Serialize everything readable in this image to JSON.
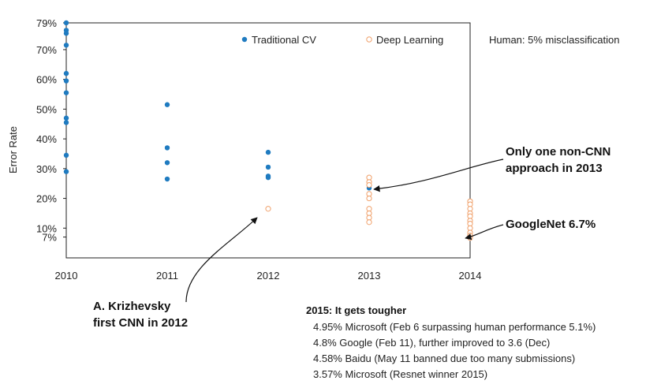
{
  "chart_data": {
    "type": "scatter",
    "title": "",
    "xlabel": "",
    "ylabel": "Error Rate",
    "x_ticks": [
      "2010",
      "2011",
      "2012",
      "2013",
      "2014"
    ],
    "y_ticks": [
      {
        "value": 7,
        "label": "7%"
      },
      {
        "value": 10,
        "label": "10%"
      },
      {
        "value": 20,
        "label": "20%"
      },
      {
        "value": 30,
        "label": "30%"
      },
      {
        "value": 40,
        "label": "40%"
      },
      {
        "value": 50,
        "label": "50%"
      },
      {
        "value": 60,
        "label": "60%"
      },
      {
        "value": 70,
        "label": "70%"
      },
      {
        "value": 79,
        "label": "79%"
      }
    ],
    "ylim": [
      0,
      79
    ],
    "grid": false,
    "legend_position": "top",
    "series": [
      {
        "name": "Traditional CV",
        "color": "#1f7bc0",
        "marker": "filled-circle",
        "points": [
          {
            "x": 2010,
            "y": 79
          },
          {
            "x": 2010,
            "y": 76.5
          },
          {
            "x": 2010,
            "y": 75.5
          },
          {
            "x": 2010,
            "y": 71.5
          },
          {
            "x": 2010,
            "y": 62
          },
          {
            "x": 2010,
            "y": 59.5
          },
          {
            "x": 2010,
            "y": 55.5
          },
          {
            "x": 2010,
            "y": 47
          },
          {
            "x": 2010,
            "y": 45.5
          },
          {
            "x": 2010,
            "y": 34.5
          },
          {
            "x": 2010,
            "y": 29
          },
          {
            "x": 2011,
            "y": 51.5
          },
          {
            "x": 2011,
            "y": 37
          },
          {
            "x": 2011,
            "y": 32
          },
          {
            "x": 2011,
            "y": 26.5
          },
          {
            "x": 2012,
            "y": 35.5
          },
          {
            "x": 2012,
            "y": 30.5
          },
          {
            "x": 2012,
            "y": 27.5
          },
          {
            "x": 2012,
            "y": 27
          },
          {
            "x": 2013,
            "y": 23.5
          }
        ]
      },
      {
        "name": "Deep Learning",
        "color": "#f0a06a",
        "marker": "open-circle",
        "points": [
          {
            "x": 2012,
            "y": 16.5
          },
          {
            "x": 2013,
            "y": 27
          },
          {
            "x": 2013,
            "y": 25.5
          },
          {
            "x": 2013,
            "y": 24.5
          },
          {
            "x": 2013,
            "y": 21.5
          },
          {
            "x": 2013,
            "y": 20
          },
          {
            "x": 2013,
            "y": 16.5
          },
          {
            "x": 2013,
            "y": 15
          },
          {
            "x": 2013,
            "y": 13.5
          },
          {
            "x": 2013,
            "y": 12
          },
          {
            "x": 2014,
            "y": 19
          },
          {
            "x": 2014,
            "y": 18
          },
          {
            "x": 2014,
            "y": 16.5
          },
          {
            "x": 2014,
            "y": 15
          },
          {
            "x": 2014,
            "y": 14
          },
          {
            "x": 2014,
            "y": 12.5
          },
          {
            "x": 2014,
            "y": 11.5
          },
          {
            "x": 2014,
            "y": 10
          },
          {
            "x": 2014,
            "y": 8.5
          },
          {
            "x": 2014,
            "y": 7.5
          },
          {
            "x": 2014,
            "y": 6.7
          }
        ]
      }
    ],
    "legend_note": "Human: 5% misclassification",
    "annotations": [
      {
        "text_lines": [
          "Only one non-CNN",
          "approach in 2013"
        ],
        "points_to": {
          "x": 2013,
          "y": 23.5
        }
      },
      {
        "text_lines": [
          "GoogleNet 6.7%"
        ],
        "points_to": {
          "x": 2014,
          "y": 6.7
        }
      },
      {
        "text_lines": [
          "A. Krizhevsky",
          "first CNN in 2012"
        ],
        "points_to": {
          "x": 2012,
          "y": 16.5
        }
      }
    ],
    "note_box": {
      "title": "2015: It gets tougher",
      "lines": [
        "4.95% Microsoft (Feb 6 surpassing human performance 5.1%)",
        "4.8% Google (Feb 11), further improved to 3.6 (Dec)",
        "4.58% Baidu (May 11 banned due too many submissions)",
        "3.57% Microsoft (Resnet winner 2015)"
      ]
    }
  }
}
